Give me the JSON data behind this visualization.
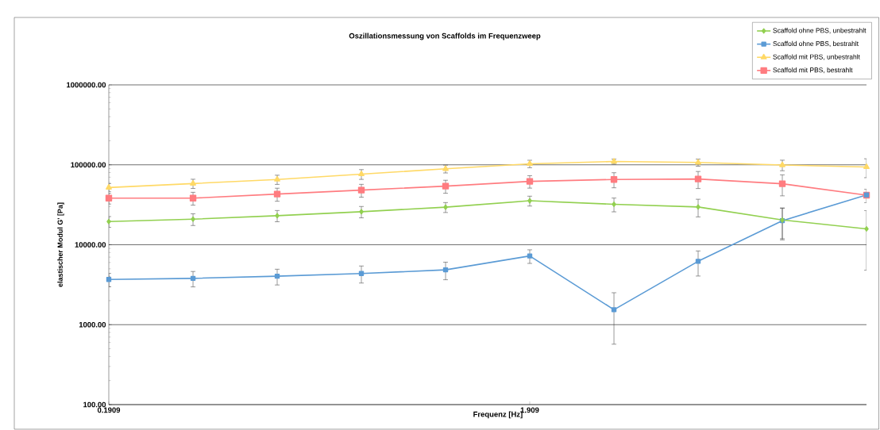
{
  "chart_data": {
    "type": "line",
    "title": "Oszillationsmessung von Scaffolds im Frequenzweep",
    "xlabel": "Frequenz [Hz]",
    "ylabel": "elastischer Modul G' [Pa]",
    "x": [
      0.1909,
      0.3026,
      0.4795,
      0.76,
      1.2045,
      1.909,
      3.026,
      4.795,
      7.6,
      12.045
    ],
    "series": [
      {
        "name": "Scaffold ohne PBS, unbestrahlt",
        "color": "#92d050",
        "marker": "diamond",
        "values": [
          19500,
          20900,
          23100,
          25900,
          29500,
          35500,
          32100,
          29700,
          20400,
          15800
        ],
        "errors": [
          3000,
          3500,
          3700,
          4200,
          4200,
          5000,
          6300,
          7400,
          8500,
          11000
        ]
      },
      {
        "name": "Scaffold ohne PBS, bestrahlt",
        "color": "#5b9bd5",
        "marker": "square",
        "values": [
          3680,
          3800,
          4040,
          4370,
          4850,
          7240,
          1540,
          6210,
          20000,
          42000
        ],
        "errors": [
          700,
          830,
          900,
          1050,
          1200,
          1400,
          970,
          2150,
          8500,
          null
        ]
      },
      {
        "name": "Scaffold mit PBS, unbestrahlt",
        "color": "#ffd966",
        "marker": "triangle",
        "values": [
          52000,
          58300,
          65500,
          76400,
          89100,
          103000,
          110000,
          107000,
          99300,
          94000
        ],
        "errors": [
          6000,
          7700,
          8600,
          10700,
          10000,
          11000,
          8000,
          11000,
          15000,
          25000
        ]
      },
      {
        "name": "Scaffold mit PBS, bestrahlt",
        "color": "#ff7c80",
        "marker": "square",
        "values": [
          38300,
          38300,
          43000,
          48200,
          54100,
          62100,
          65600,
          66500,
          57900,
          41700
        ],
        "errors": [
          6000,
          7000,
          8000,
          8800,
          10000,
          11000,
          14000,
          16000,
          17000,
          8000
        ]
      }
    ],
    "log": "xy",
    "xlim": [
      0.1909,
      12.045
    ],
    "xticks": [
      0.1909,
      1.909
    ],
    "ylim": [
      100,
      1000000
    ],
    "yticks": [
      {
        "value": 100,
        "label": "100.00"
      },
      {
        "value": 1000,
        "label": "1000.00"
      },
      {
        "value": 10000,
        "label": "10000.00"
      },
      {
        "value": 100000,
        "label": "100000.00"
      },
      {
        "value": 1000000,
        "label": "1000000.00"
      }
    ],
    "grid": "y",
    "legend": "top right"
  }
}
